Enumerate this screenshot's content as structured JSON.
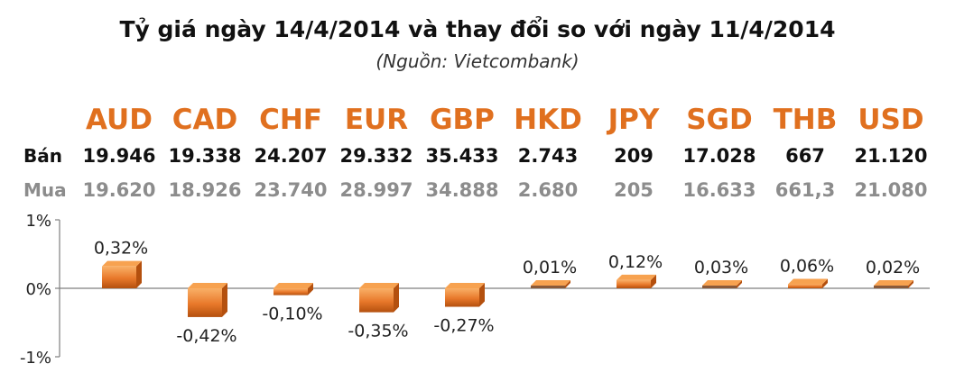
{
  "title": "Tỷ giá ngày 14/4/2014 và thay đổi so với ngày 11/4/2014",
  "source": "(Nguồn: Vietcombank)",
  "row_labels": {
    "sell": "Bán",
    "buy": "Mua"
  },
  "colors": {
    "currency": "#e0701f",
    "sell_text": "#111111",
    "buy_text": "#8c8c8c",
    "bar_light": "#f7a250",
    "bar_dark": "#b4500e",
    "bar_small": "#8a5a3a",
    "axis": "#7f7f7f"
  },
  "chart_data": {
    "type": "bar",
    "categories": [
      "AUD",
      "CAD",
      "CHF",
      "EUR",
      "GBP",
      "HKD",
      "JPY",
      "SGD",
      "THB",
      "USD"
    ],
    "sell": [
      "19.946",
      "19.338",
      "24.207",
      "29.332",
      "35.433",
      "2.743",
      "209",
      "17.028",
      "667",
      "21.120"
    ],
    "buy": [
      "19.620",
      "18.926",
      "23.740",
      "28.997",
      "34.888",
      "2.680",
      "205",
      "16.633",
      "661,3",
      "21.080"
    ],
    "values": [
      0.32,
      -0.42,
      -0.1,
      -0.35,
      -0.27,
      0.01,
      0.12,
      0.03,
      0.06,
      0.02
    ],
    "data_labels": [
      "0,32%",
      "-0,42%",
      "-0,10%",
      "-0,35%",
      "-0,27%",
      "0,01%",
      "0,12%",
      "0,03%",
      "0,06%",
      "0,02%"
    ],
    "y_ticks": [
      "1%",
      "0%",
      "-1%"
    ],
    "y_tick_values": [
      1,
      0,
      -1
    ],
    "ylim": [
      -1,
      1
    ],
    "xlabel": "",
    "ylabel": "",
    "grid": false,
    "legend": "none"
  }
}
